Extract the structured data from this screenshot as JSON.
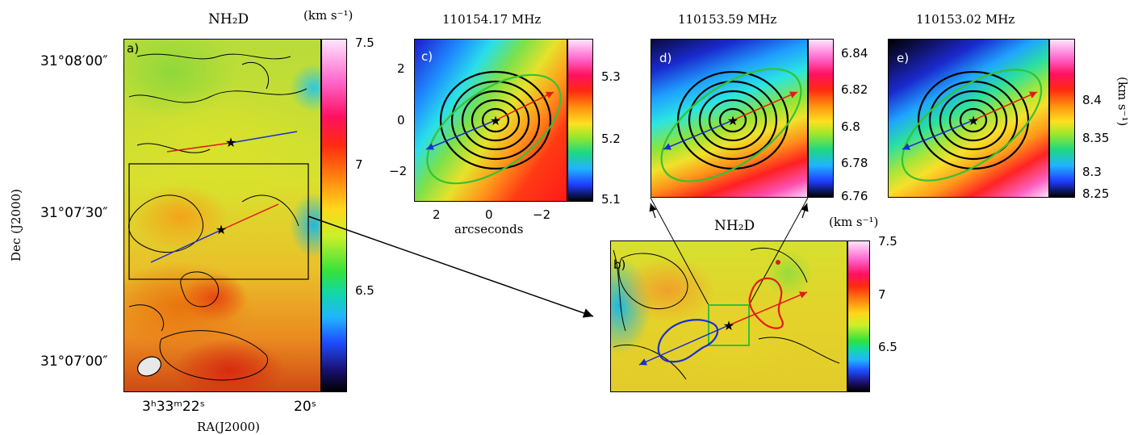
{
  "panel_a": {
    "title_html": "NH₂D",
    "units": "(km s⁻¹)",
    "label": "a)",
    "dec_ticks": [
      "31°08′00″",
      "31°07′30″",
      "31°07′00″"
    ],
    "ra_ticks": [
      "3ʰ33ᵐ22ˢ",
      "20ˢ"
    ],
    "xlabel": "RA(J2000)",
    "ylabel": "Dec (J2000)",
    "cbar_ticks": [
      "7.5",
      "7",
      "6.5"
    ]
  },
  "panel_b": {
    "title": "NH₂D",
    "units": "(km s⁻¹)",
    "label": "b)",
    "cbar_ticks": [
      "7.5",
      "7",
      "6.5"
    ]
  },
  "panel_c": {
    "title": "110154.17 MHz",
    "label": "c)",
    "yticks": [
      "2",
      "0",
      "−2"
    ],
    "xticks": [
      "2",
      "0",
      "−2"
    ],
    "xlabel": "arcseconds",
    "cbar_ticks": [
      "5.3",
      "5.2",
      "5.1"
    ]
  },
  "panel_d": {
    "title": "110153.59 MHz",
    "label": "d)",
    "cbar_ticks": [
      "6.84",
      "6.82",
      "6.8",
      "6.78",
      "6.76"
    ]
  },
  "panel_e": {
    "title": "110153.02 MHz",
    "label": "e)",
    "cbar_ticks": [
      "8.4",
      "8.35",
      "8.3",
      "8.25"
    ],
    "units": "(km s⁻¹)"
  },
  "colors": {
    "outflow_red": "#e21a1a",
    "outflow_blue": "#1a2fd0",
    "ellipse_green": "#34c234",
    "box_green": "#34c234"
  }
}
